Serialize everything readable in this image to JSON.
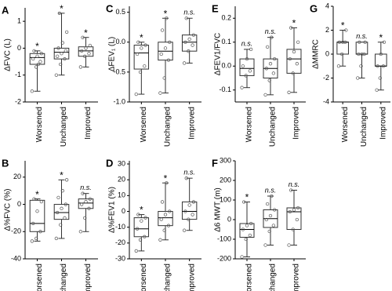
{
  "chart_data": [
    {
      "type": "box",
      "label": "A",
      "ylabel": "ΔFVC (L)",
      "ylim": [
        -2,
        1.5
      ],
      "yticks": [
        -2,
        -1,
        0,
        1
      ],
      "categories": [
        "Worsened",
        "Unchanged",
        "Improved"
      ],
      "boxes": [
        {
          "whislo": -1.6,
          "q1": -0.6,
          "med": -0.35,
          "q3": -0.2,
          "whishi": -0.1,
          "sig": "*",
          "points": [
            -1.6,
            -0.7,
            -0.5,
            -0.4,
            -0.3,
            -0.2,
            -0.1,
            -0.6
          ]
        },
        {
          "whislo": -1.0,
          "q1": -0.4,
          "med": -0.15,
          "q3": 0.0,
          "whishi": 1.3,
          "sig": "*",
          "points": [
            -1.0,
            -0.6,
            -0.4,
            -0.3,
            -0.2,
            -0.1,
            0,
            0.2,
            0.6,
            1.3
          ]
        },
        {
          "whislo": -0.7,
          "q1": -0.3,
          "med": -0.1,
          "q3": 0.05,
          "whishi": 0.4,
          "sig": "*",
          "points": [
            -0.7,
            -0.3,
            -0.2,
            -0.1,
            0,
            0.1,
            0.4
          ]
        }
      ]
    },
    {
      "type": "box",
      "label": "B",
      "ylabel": "Δ%FVC (%)",
      "ylim": [
        -40,
        32
      ],
      "yticks": [
        -40,
        -20,
        0,
        20
      ],
      "categories": [
        "Worsened",
        "Unchanged",
        "Improved"
      ],
      "boxes": [
        {
          "whislo": -27,
          "q1": -20,
          "med": -14,
          "q3": 3,
          "whishi": 4,
          "sig": "*",
          "points": [
            -27,
            -25,
            -20,
            -14,
            -5,
            2,
            4
          ]
        },
        {
          "whislo": -25,
          "q1": -11,
          "med": -6,
          "q3": 0,
          "whishi": 18,
          "sig": "*",
          "points": [
            -25,
            -15,
            -10,
            -6,
            -3,
            0,
            5,
            10,
            18
          ]
        },
        {
          "whislo": -20,
          "q1": -3,
          "med": 1,
          "q3": 4,
          "whishi": 8,
          "sig": "n.s.",
          "points": [
            -20,
            -10,
            -3,
            0,
            2,
            4,
            8
          ]
        }
      ]
    },
    {
      "type": "box",
      "label": "C",
      "ylabel": "ΔFEV₁ (L)",
      "ylim": [
        -1.0,
        0.6
      ],
      "yticks": [
        {
          "value": -1.0,
          "label": "-1.0"
        },
        {
          "value": -0.5,
          "label": "-0.5"
        },
        {
          "value": 0.0,
          "label": "0.0"
        },
        {
          "value": 0.5,
          "label": "0.5"
        }
      ],
      "categories": [
        "Worsened",
        "Unchanged",
        "Improved"
      ],
      "boxes": [
        {
          "whislo": -0.87,
          "q1": -0.45,
          "med": -0.18,
          "q3": -0.05,
          "whishi": 0.0,
          "sig": "*",
          "points": [
            -0.87,
            -0.5,
            -0.4,
            -0.2,
            -0.1,
            -0.05,
            0.0
          ]
        },
        {
          "whislo": -0.85,
          "q1": -0.3,
          "med": -0.15,
          "q3": 0.0,
          "whishi": 0.4,
          "sig": "*",
          "points": [
            -0.85,
            -0.6,
            -0.3,
            -0.2,
            -0.1,
            0,
            0.2,
            0.4
          ]
        },
        {
          "whislo": -0.35,
          "q1": -0.15,
          "med": 0.0,
          "q3": 0.12,
          "whishi": 0.4,
          "sig": "n.s.",
          "points": [
            -0.35,
            -0.15,
            -0.05,
            0,
            0.05,
            0.12,
            0.4
          ]
        }
      ]
    },
    {
      "type": "box",
      "label": "D",
      "ylabel": "Δ%FEV1 (%)",
      "ylim": [
        -30,
        32
      ],
      "yticks": [
        -30,
        -20,
        -10,
        0,
        10,
        20,
        30
      ],
      "categories": [
        "Worsened",
        "Unchanged",
        "Improved"
      ],
      "boxes": [
        {
          "whislo": -25,
          "q1": -16,
          "med": -11,
          "q3": -4,
          "whishi": -2,
          "sig": "*",
          "points": [
            -25,
            -18,
            -16,
            -11,
            -6,
            -4,
            -2
          ]
        },
        {
          "whislo": -18,
          "q1": -9,
          "med": -4,
          "q3": 0,
          "whishi": 18,
          "sig": "*",
          "points": [
            -18,
            -12,
            -9,
            -5,
            -2,
            0,
            6,
            18
          ]
        },
        {
          "whislo": -12,
          "q1": -5,
          "med": 0,
          "q3": 6,
          "whishi": 21,
          "sig": "n.s.",
          "points": [
            -12,
            -5,
            -2,
            0,
            4,
            6,
            21
          ]
        }
      ]
    },
    {
      "type": "box",
      "label": "E",
      "ylabel": "ΔFEV1/FVC",
      "ylim": [
        -0.15,
        0.25
      ],
      "yticks": [
        {
          "value": -0.1,
          "label": "-0.1"
        },
        {
          "value": 0.0,
          "label": "0.0"
        },
        0.1,
        0.2
      ],
      "categories": [
        "Worsened",
        "Unchanged",
        "Improved"
      ],
      "boxes": [
        {
          "whislo": -0.09,
          "q1": -0.04,
          "med": -0.01,
          "q3": 0.03,
          "whishi": 0.07,
          "sig": "n.s.",
          "points": [
            -0.09,
            -0.04,
            -0.02,
            0,
            0.03,
            0.07
          ]
        },
        {
          "whislo": -0.12,
          "q1": -0.05,
          "med": -0.01,
          "q3": 0.03,
          "whishi": 0.12,
          "sig": "n.s.",
          "points": [
            -0.12,
            -0.06,
            -0.03,
            -0.01,
            0.01,
            0.03,
            0.08,
            0.12
          ]
        },
        {
          "whislo": -0.11,
          "q1": -0.03,
          "med": 0.03,
          "q3": 0.07,
          "whishi": 0.16,
          "sig": "*",
          "points": [
            -0.11,
            -0.03,
            0.01,
            0.03,
            0.06,
            0.1,
            0.16
          ]
        }
      ]
    },
    {
      "type": "box",
      "label": "F",
      "ylabel": "Δ6 MWT (m)",
      "ylim": [
        -200,
        300
      ],
      "yticks": [
        -200,
        -100,
        0,
        100,
        200,
        300
      ],
      "categories": [
        "Worsened",
        "Unchanged",
        "Improved"
      ],
      "boxes": [
        {
          "whislo": -190,
          "q1": -90,
          "med": -50,
          "q3": -20,
          "whishi": 90,
          "sig": "*",
          "points": [
            -190,
            -100,
            -80,
            -50,
            -30,
            -20,
            90
          ]
        },
        {
          "whislo": -130,
          "q1": -40,
          "med": 5,
          "q3": 50,
          "whishi": 120,
          "sig": "n.s.",
          "points": [
            -130,
            -60,
            -30,
            0,
            20,
            50,
            80,
            120
          ]
        },
        {
          "whislo": -130,
          "q1": -50,
          "med": 40,
          "q3": 60,
          "whishi": 150,
          "sig": "n.s.",
          "points": [
            -130,
            -50,
            0,
            40,
            50,
            60,
            150
          ]
        }
      ]
    },
    {
      "type": "box",
      "label": "G",
      "ylabel": "ΔMMRC",
      "ylim": [
        -4,
        4
      ],
      "yticks": [
        -4,
        -2,
        0,
        2,
        4
      ],
      "categories": [
        "Worsened",
        "Unchanged",
        "Improved"
      ],
      "boxes": [
        {
          "whislo": -1,
          "q1": 0,
          "med": 1,
          "q3": 1,
          "whishi": 2,
          "sig": "*",
          "points": [
            -1,
            0,
            1,
            1,
            1,
            2
          ]
        },
        {
          "whislo": -2,
          "q1": 0,
          "med": 0,
          "q3": 1,
          "whishi": 1,
          "sig": "n.s.",
          "points": [
            -2,
            -1,
            0,
            0,
            0,
            1,
            1
          ]
        },
        {
          "whislo": -3,
          "q1": -1,
          "med": -1,
          "q3": 0,
          "whishi": 1,
          "sig": "*",
          "points": [
            -3,
            -2,
            -1,
            -1,
            0,
            1
          ]
        }
      ]
    }
  ]
}
